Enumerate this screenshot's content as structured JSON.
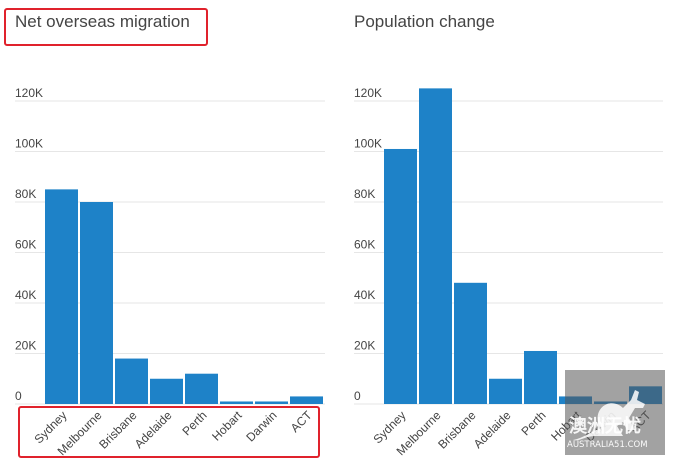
{
  "chart_data": [
    {
      "type": "bar",
      "title": "Net overseas migration",
      "categories": [
        "Sydney",
        "Melbourne",
        "Brisbane",
        "Adelaide",
        "Perth",
        "Hobart",
        "Darwin",
        "ACT"
      ],
      "values": [
        85000,
        80000,
        18000,
        10000,
        12000,
        1000,
        1000,
        3000
      ],
      "ylim": [
        0,
        120000
      ],
      "yticks": [
        0,
        20000,
        40000,
        60000,
        80000,
        100000,
        120000
      ],
      "ytick_labels": [
        "0",
        "20K",
        "40K",
        "60K",
        "80K",
        "100K",
        "120K"
      ],
      "xlabel": "",
      "ylabel": "",
      "grid": true,
      "bar_color": "#1e82c8"
    },
    {
      "type": "bar",
      "title": "Population change",
      "categories": [
        "Sydney",
        "Melbourne",
        "Brisbane",
        "Adelaide",
        "Perth",
        "Hobart",
        "Darwin",
        "ACT"
      ],
      "values": [
        101000,
        125000,
        48000,
        10000,
        21000,
        3000,
        1000,
        7000
      ],
      "ylim": [
        0,
        120000
      ],
      "yticks": [
        0,
        20000,
        40000,
        60000,
        80000,
        100000,
        120000
      ],
      "ytick_labels": [
        "0",
        "20K",
        "40K",
        "60K",
        "80K",
        "100K",
        "120K"
      ],
      "xlabel": "",
      "ylabel": "",
      "grid": true,
      "bar_color": "#1e82c8"
    }
  ],
  "colors": {
    "bar": "#1e82c8",
    "highlight": "#e0222c",
    "grid": "#e6e6e6"
  },
  "watermark": {
    "logo_text": "澳洲无忧",
    "site": "AUSTRALIA51.COM"
  }
}
